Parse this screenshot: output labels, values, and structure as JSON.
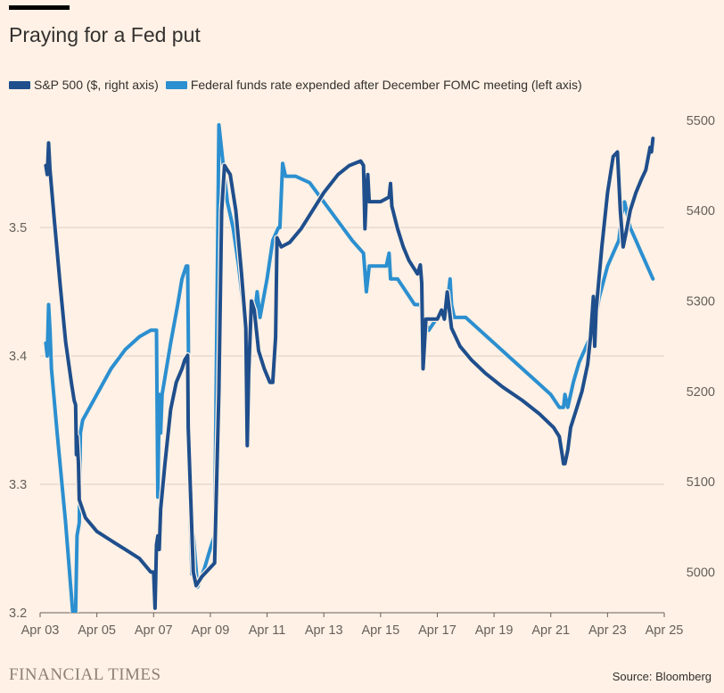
{
  "title": "Praying for a Fed put",
  "legend": [
    {
      "label": "S&P 500 ($, right axis)",
      "color": "#1f4e8c"
    },
    {
      "label": "Federal funds rate expended after December FOMC meeting (left axis)",
      "color": "#2b8fd0"
    }
  ],
  "brand": "FINANCIAL TIMES",
  "source": "Source: Bloomberg",
  "chart_data": {
    "type": "line",
    "title": "Praying for a Fed put",
    "x_ticks": [
      {
        "label": "Apr 03",
        "value": 3
      },
      {
        "label": "Apr 05",
        "value": 5
      },
      {
        "label": "Apr 07",
        "value": 7
      },
      {
        "label": "Apr 09",
        "value": 9
      },
      {
        "label": "Apr 11",
        "value": 11
      },
      {
        "label": "Apr 13",
        "value": 13
      },
      {
        "label": "Apr 15",
        "value": 15
      },
      {
        "label": "Apr 17",
        "value": 17
      },
      {
        "label": "Apr 19",
        "value": 19
      },
      {
        "label": "Apr 21",
        "value": 21
      },
      {
        "label": "Apr 23",
        "value": 23
      },
      {
        "label": "Apr 25",
        "value": 25
      }
    ],
    "xlim": [
      3,
      25
    ],
    "left_axis": {
      "ticks": [
        3.2,
        3.3,
        3.4,
        3.5
      ],
      "tick_labels": [
        "3.2",
        "3.3",
        "3.4",
        "3.5"
      ],
      "ylim": [
        3.2,
        3.58
      ]
    },
    "right_axis": {
      "ticks": [
        5000,
        5100,
        5200,
        5300,
        5400,
        5500
      ],
      "tick_labels": [
        "5000",
        "5100",
        "5200",
        "5300",
        "5400",
        "5500"
      ],
      "ylim": [
        4955,
        5495
      ]
    },
    "series": [
      {
        "name": "Federal funds rate expended after December FOMC meeting (left axis)",
        "axis": "left",
        "color": "#2b8fd0",
        "points": [
          [
            3.2,
            3.41
          ],
          [
            3.25,
            3.4
          ],
          [
            3.3,
            3.44
          ],
          [
            3.35,
            3.42
          ],
          [
            3.4,
            3.39
          ],
          [
            3.6,
            3.34
          ],
          [
            3.9,
            3.27
          ],
          [
            4.15,
            3.2
          ],
          [
            4.25,
            3.2
          ],
          [
            4.3,
            3.26
          ],
          [
            4.38,
            3.27
          ],
          [
            4.42,
            3.34
          ],
          [
            4.5,
            3.35
          ],
          [
            5.0,
            3.37
          ],
          [
            5.5,
            3.39
          ],
          [
            6.0,
            3.405
          ],
          [
            6.5,
            3.415
          ],
          [
            6.9,
            3.42
          ],
          [
            7.1,
            3.42
          ],
          [
            7.15,
            3.29
          ],
          [
            7.2,
            3.37
          ],
          [
            7.25,
            3.34
          ],
          [
            7.3,
            3.37
          ],
          [
            7.6,
            3.41
          ],
          [
            7.85,
            3.44
          ],
          [
            8.0,
            3.46
          ],
          [
            8.15,
            3.47
          ],
          [
            8.2,
            3.47
          ],
          [
            8.25,
            3.35
          ],
          [
            8.3,
            3.27
          ],
          [
            8.35,
            3.23
          ],
          [
            8.4,
            3.26
          ],
          [
            8.55,
            3.22
          ],
          [
            8.8,
            3.235
          ],
          [
            9.0,
            3.25
          ],
          [
            9.15,
            3.26
          ],
          [
            9.3,
            3.58
          ],
          [
            9.45,
            3.55
          ],
          [
            9.6,
            3.52
          ],
          [
            9.8,
            3.5
          ],
          [
            10.0,
            3.47
          ],
          [
            10.2,
            3.43
          ],
          [
            10.4,
            3.42
          ],
          [
            10.55,
            3.43
          ],
          [
            10.65,
            3.45
          ],
          [
            10.75,
            3.43
          ],
          [
            11.0,
            3.46
          ],
          [
            11.2,
            3.49
          ],
          [
            11.4,
            3.5
          ],
          [
            11.45,
            3.5
          ],
          [
            11.55,
            3.55
          ],
          [
            11.65,
            3.54
          ],
          [
            12.0,
            3.54
          ],
          [
            12.5,
            3.535
          ],
          [
            13.0,
            3.52
          ],
          [
            13.5,
            3.505
          ],
          [
            14.0,
            3.49
          ],
          [
            14.4,
            3.48
          ],
          [
            14.5,
            3.45
          ],
          [
            14.6,
            3.47
          ],
          [
            15.0,
            3.47
          ],
          [
            15.2,
            3.47
          ],
          [
            15.3,
            3.48
          ],
          [
            15.35,
            3.46
          ],
          [
            15.6,
            3.46
          ],
          [
            15.9,
            3.45
          ],
          [
            16.2,
            3.44
          ],
          [
            16.4,
            3.44
          ],
          [
            16.5,
            3.43
          ],
          [
            16.7,
            3.42
          ],
          [
            17.0,
            3.43
          ],
          [
            17.2,
            3.435
          ],
          [
            17.3,
            3.43
          ],
          [
            17.45,
            3.46
          ],
          [
            17.5,
            3.44
          ],
          [
            17.6,
            3.43
          ],
          [
            18.0,
            3.43
          ],
          [
            18.5,
            3.42
          ],
          [
            19.0,
            3.41
          ],
          [
            19.5,
            3.4
          ],
          [
            20.0,
            3.39
          ],
          [
            20.5,
            3.38
          ],
          [
            21.0,
            3.37
          ],
          [
            21.3,
            3.36
          ],
          [
            21.45,
            3.36
          ],
          [
            21.5,
            3.37
          ],
          [
            21.6,
            3.36
          ],
          [
            21.8,
            3.38
          ],
          [
            22.0,
            3.395
          ],
          [
            22.3,
            3.41
          ],
          [
            22.5,
            3.42
          ],
          [
            22.6,
            3.43
          ],
          [
            22.7,
            3.445
          ],
          [
            23.0,
            3.47
          ],
          [
            23.2,
            3.48
          ],
          [
            23.4,
            3.49
          ],
          [
            23.5,
            3.51
          ],
          [
            23.6,
            3.52
          ],
          [
            23.8,
            3.5
          ],
          [
            24.0,
            3.49
          ],
          [
            24.2,
            3.48
          ],
          [
            24.4,
            3.47
          ],
          [
            24.5,
            3.465
          ],
          [
            24.6,
            3.46
          ]
        ]
      },
      {
        "name": "S&P 500 ($, right axis)",
        "axis": "right",
        "color": "#1f4e8c",
        "points": [
          [
            3.2,
            5450
          ],
          [
            3.25,
            5440
          ],
          [
            3.3,
            5475
          ],
          [
            3.35,
            5445
          ],
          [
            3.5,
            5390
          ],
          [
            3.7,
            5320
          ],
          [
            3.9,
            5255
          ],
          [
            4.1,
            5210
          ],
          [
            4.2,
            5190
          ],
          [
            4.25,
            5185
          ],
          [
            4.28,
            5130
          ],
          [
            4.3,
            5150
          ],
          [
            4.35,
            5120
          ],
          [
            4.38,
            5080
          ],
          [
            4.6,
            5060
          ],
          [
            5.0,
            5045
          ],
          [
            5.5,
            5035
          ],
          [
            6.0,
            5025
          ],
          [
            6.5,
            5015
          ],
          [
            6.9,
            5000
          ],
          [
            7.0,
            5000
          ],
          [
            7.05,
            4960
          ],
          [
            7.1,
            5030
          ],
          [
            7.15,
            5040
          ],
          [
            7.2,
            5025
          ],
          [
            7.25,
            5070
          ],
          [
            7.4,
            5120
          ],
          [
            7.6,
            5180
          ],
          [
            7.8,
            5210
          ],
          [
            8.0,
            5225
          ],
          [
            8.1,
            5235
          ],
          [
            8.2,
            5240
          ],
          [
            8.22,
            5160
          ],
          [
            8.3,
            5090
          ],
          [
            8.4,
            5000
          ],
          [
            8.5,
            4985
          ],
          [
            8.7,
            4995
          ],
          [
            9.0,
            5005
          ],
          [
            9.15,
            5010
          ],
          [
            9.3,
            5200
          ],
          [
            9.4,
            5400
          ],
          [
            9.5,
            5450
          ],
          [
            9.7,
            5440
          ],
          [
            9.9,
            5400
          ],
          [
            10.1,
            5330
          ],
          [
            10.2,
            5290
          ],
          [
            10.25,
            5270
          ],
          [
            10.3,
            5140
          ],
          [
            10.35,
            5220
          ],
          [
            10.45,
            5300
          ],
          [
            10.55,
            5290
          ],
          [
            10.7,
            5245
          ],
          [
            10.9,
            5225
          ],
          [
            11.1,
            5210
          ],
          [
            11.2,
            5210
          ],
          [
            11.3,
            5260
          ],
          [
            11.35,
            5370
          ],
          [
            11.5,
            5360
          ],
          [
            11.8,
            5365
          ],
          [
            12.2,
            5380
          ],
          [
            12.6,
            5400
          ],
          [
            13.0,
            5420
          ],
          [
            13.5,
            5440
          ],
          [
            13.9,
            5450
          ],
          [
            14.3,
            5455
          ],
          [
            14.4,
            5450
          ],
          [
            14.45,
            5380
          ],
          [
            14.5,
            5420
          ],
          [
            14.55,
            5440
          ],
          [
            14.6,
            5410
          ],
          [
            15.0,
            5410
          ],
          [
            15.3,
            5415
          ],
          [
            15.35,
            5430
          ],
          [
            15.4,
            5405
          ],
          [
            15.6,
            5380
          ],
          [
            15.8,
            5360
          ],
          [
            16.0,
            5345
          ],
          [
            16.3,
            5330
          ],
          [
            16.4,
            5340
          ],
          [
            16.45,
            5320
          ],
          [
            16.5,
            5225
          ],
          [
            16.6,
            5280
          ],
          [
            16.8,
            5280
          ],
          [
            17.0,
            5280
          ],
          [
            17.15,
            5290
          ],
          [
            17.25,
            5280
          ],
          [
            17.35,
            5310
          ],
          [
            17.5,
            5270
          ],
          [
            17.8,
            5250
          ],
          [
            18.2,
            5235
          ],
          [
            18.7,
            5220
          ],
          [
            19.3,
            5205
          ],
          [
            20.0,
            5190
          ],
          [
            20.6,
            5175
          ],
          [
            21.1,
            5160
          ],
          [
            21.3,
            5150
          ],
          [
            21.4,
            5130
          ],
          [
            21.45,
            5120
          ],
          [
            21.5,
            5120
          ],
          [
            21.6,
            5135
          ],
          [
            21.7,
            5160
          ],
          [
            21.9,
            5180
          ],
          [
            22.1,
            5200
          ],
          [
            22.3,
            5230
          ],
          [
            22.4,
            5260
          ],
          [
            22.5,
            5305
          ],
          [
            22.55,
            5250
          ],
          [
            22.6,
            5290
          ],
          [
            22.8,
            5360
          ],
          [
            23.0,
            5420
          ],
          [
            23.2,
            5460
          ],
          [
            23.35,
            5465
          ],
          [
            23.45,
            5400
          ],
          [
            23.55,
            5360
          ],
          [
            23.65,
            5375
          ],
          [
            23.8,
            5400
          ],
          [
            24.0,
            5420
          ],
          [
            24.2,
            5435
          ],
          [
            24.35,
            5445
          ],
          [
            24.5,
            5470
          ],
          [
            24.55,
            5465
          ],
          [
            24.6,
            5480
          ]
        ]
      }
    ],
    "grid": true,
    "legend_position": "top-left"
  }
}
